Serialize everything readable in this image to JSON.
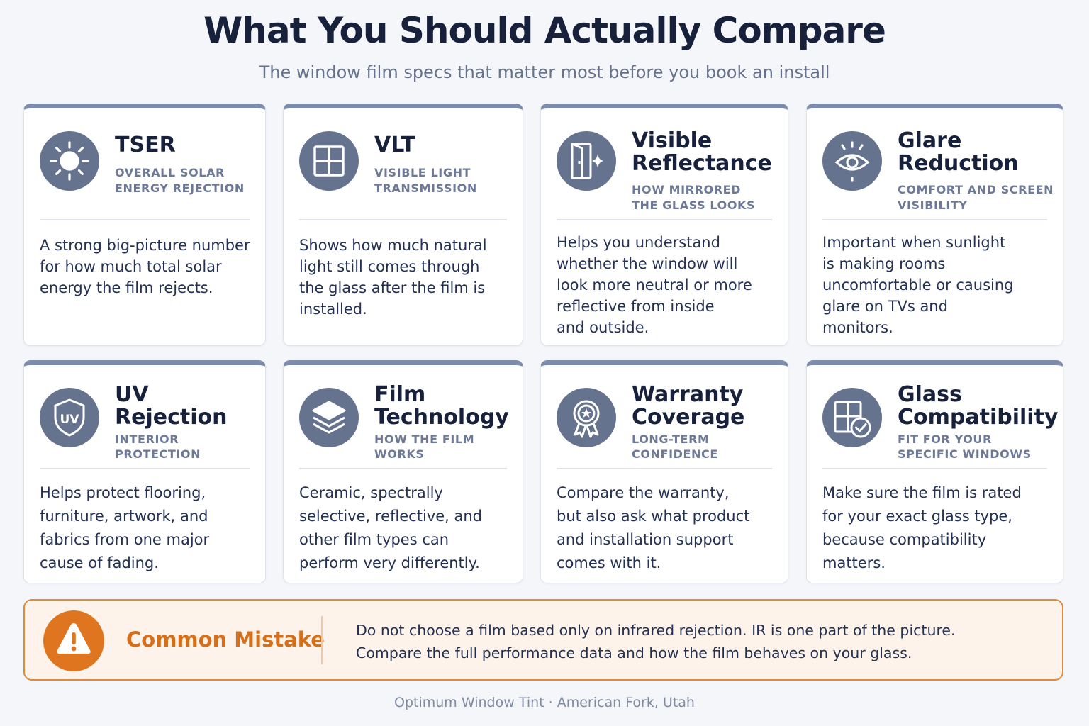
{
  "header": {
    "title": "What You Should Actually Compare",
    "subtitle": "The window film specs that matter most before you book an install"
  },
  "cards": [
    {
      "icon": "sun-icon",
      "title": "TSER",
      "subtitle": "OVERALL SOLAR\nENERGY REJECTION",
      "body": "A strong big-picture number\nfor how much total solar\nenergy the film rejects."
    },
    {
      "icon": "window-grid-icon",
      "title": "VLT",
      "subtitle": "VISIBLE LIGHT\nTRANSMISSION",
      "body": "Shows how much natural\nlight still comes through\nthe glass after the film is\ninstalled."
    },
    {
      "icon": "mirror-sparkle-icon",
      "title": "Visible\nReflectance",
      "subtitle": "HOW MIRRORED\nTHE GLASS LOOKS",
      "body": "Helps you understand\nwhether the window will\nlook more neutral or more\nreflective from inside\nand outside."
    },
    {
      "icon": "eye-icon",
      "title": "Glare\nReduction",
      "subtitle": "COMFORT AND SCREEN\nVISIBILITY",
      "body": "Important when sunlight\nis making rooms\nuncomfortable or causing\nglare on TVs and\nmonitors."
    },
    {
      "icon": "uv-shield-icon",
      "title": "UV\nRejection",
      "subtitle": "INTERIOR\nPROTECTION",
      "body": "Helps protect flooring,\nfurniture, artwork, and\nfabrics from one major\ncause of fading."
    },
    {
      "icon": "layers-icon",
      "title": "Film\nTechnology",
      "subtitle": "HOW THE FILM\nWORKS",
      "body": "Ceramic, spectrally\nselective, reflective, and\nother film types can\nperform very differently."
    },
    {
      "icon": "award-ribbon-icon",
      "title": "Warranty\nCoverage",
      "subtitle": "LONG-TERM\nCONFIDENCE",
      "body": "Compare the warranty,\nbut also ask what product\nand installation support\ncomes with it."
    },
    {
      "icon": "window-check-icon",
      "title": "Glass\nCompatibility",
      "subtitle": "FIT FOR YOUR\nSPECIFIC WINDOWS",
      "body": "Make sure the film is rated\nfor your exact glass type,\nbecause compatibility\nmatters."
    }
  ],
  "mistake": {
    "icon": "warning-icon",
    "label": "Common Mistake",
    "text": "Do not choose a film based only on infrared rejection. IR is one part of the picture.\nCompare the full performance data and how the film behaves on your glass."
  },
  "footer": {
    "text": "Optimum Window Tint · American Fork, Utah"
  },
  "colors": {
    "background": "#f4f6f9",
    "title": "#17213c",
    "icon_circle": "#66738f",
    "card_top_bar": "#7e8cab",
    "accent_orange": "#e07520",
    "mistake_background": "#fdf3ea"
  }
}
